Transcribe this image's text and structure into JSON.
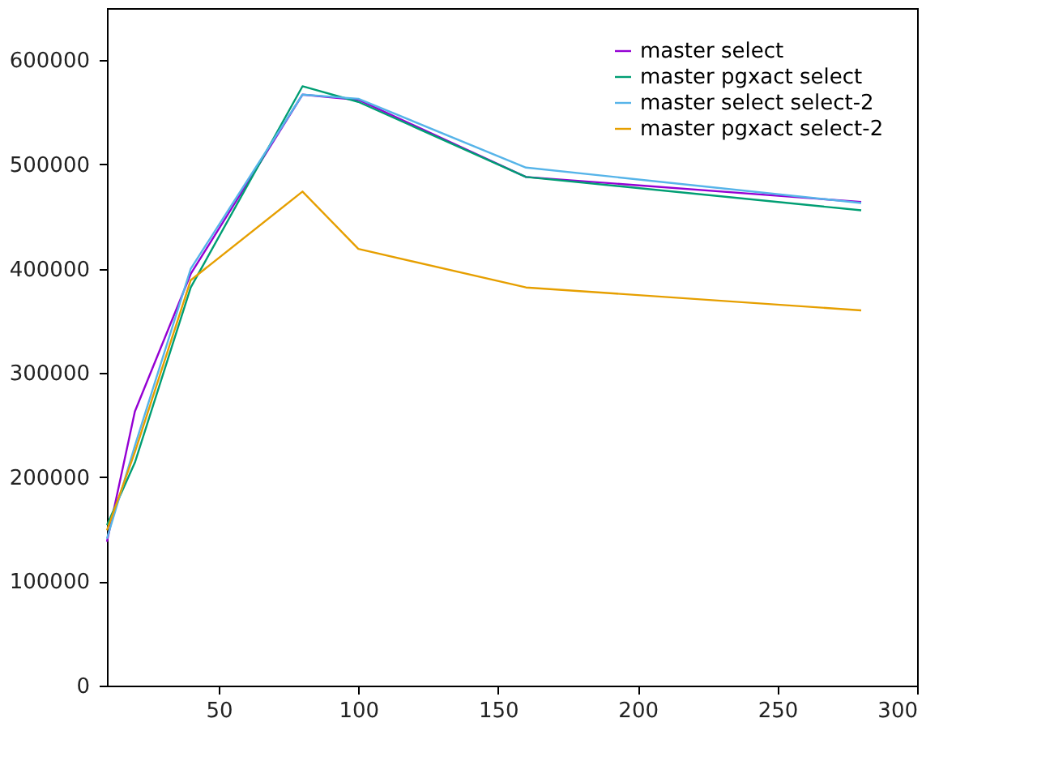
{
  "chart_data": {
    "type": "line",
    "x": [
      10,
      20,
      40,
      80,
      100,
      160,
      280
    ],
    "series": [
      {
        "name": "master select",
        "color": "#9400d3",
        "values": [
          138000,
          263000,
          395000,
          567000,
          562000,
          488000,
          464000
        ]
      },
      {
        "name": "master pgxact select",
        "color": "#009e73",
        "values": [
          154000,
          214000,
          382000,
          575000,
          560000,
          488000,
          456000
        ]
      },
      {
        "name": "master select select-2",
        "color": "#56b4e9",
        "values": [
          141000,
          230000,
          400000,
          567000,
          563000,
          497000,
          463000
        ]
      },
      {
        "name": "master pgxact select-2",
        "color": "#e69f00",
        "values": [
          149000,
          224000,
          389000,
          474000,
          419000,
          382000,
          360000
        ]
      }
    ],
    "xlim": [
      10,
      300
    ],
    "xticks": [
      50,
      100,
      150,
      200,
      250,
      300
    ],
    "ylim": [
      0,
      650000
    ],
    "yticks": [
      0,
      100000,
      200000,
      300000,
      400000,
      500000,
      600000
    ],
    "grid": false,
    "legend": "top right",
    "marker": "none",
    "line_style": "solid"
  }
}
